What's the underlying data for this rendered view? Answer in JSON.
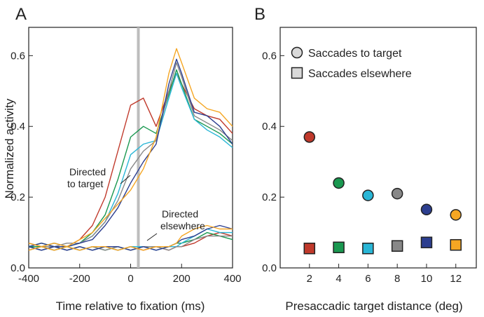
{
  "chart_data": [
    {
      "panel": "A",
      "type": "line",
      "xlabel": "Time relative to fixation (ms)",
      "ylabel": "Normalized activity",
      "xlim": [
        -400,
        400
      ],
      "ylim": [
        0,
        0.68
      ],
      "xticks": [
        -400,
        -200,
        0,
        200,
        400
      ],
      "yticks": [
        0.0,
        0.2,
        0.4,
        0.6
      ],
      "ytick_labels": [
        "0.0",
        "0.2",
        "0.4",
        "0.6"
      ],
      "vertical_marker_x": 0,
      "annotations": [
        {
          "lines": [
            "Directed",
            "to target"
          ]
        },
        {
          "lines": [
            "Directed",
            "elsewhere"
          ]
        }
      ],
      "x": [
        -400,
        -350,
        -300,
        -250,
        -200,
        -150,
        -100,
        -50,
        0,
        50,
        100,
        150,
        180,
        200,
        250,
        300,
        350,
        400
      ],
      "series": [
        {
          "group": "target",
          "color": "#c0392b",
          "values": [
            0.07,
            0.06,
            0.07,
            0.06,
            0.08,
            0.12,
            0.2,
            0.33,
            0.46,
            0.48,
            0.4,
            0.5,
            0.55,
            0.52,
            0.45,
            0.43,
            0.42,
            0.38
          ]
        },
        {
          "group": "target",
          "color": "#1a9850",
          "values": [
            0.06,
            0.07,
            0.06,
            0.06,
            0.07,
            0.1,
            0.15,
            0.25,
            0.37,
            0.4,
            0.38,
            0.49,
            0.56,
            0.52,
            0.42,
            0.4,
            0.38,
            0.35
          ]
        },
        {
          "group": "target",
          "color": "#29b6d6",
          "values": [
            0.06,
            0.06,
            0.07,
            0.06,
            0.07,
            0.09,
            0.13,
            0.21,
            0.32,
            0.35,
            0.36,
            0.48,
            0.55,
            0.51,
            0.42,
            0.39,
            0.37,
            0.34
          ]
        },
        {
          "group": "target",
          "color": "#888888",
          "values": [
            0.07,
            0.06,
            0.06,
            0.07,
            0.07,
            0.09,
            0.13,
            0.19,
            0.28,
            0.33,
            0.36,
            0.5,
            0.58,
            0.54,
            0.43,
            0.41,
            0.39,
            0.36
          ]
        },
        {
          "group": "target",
          "color": "#2c3e8f",
          "values": [
            0.06,
            0.07,
            0.06,
            0.06,
            0.07,
            0.08,
            0.12,
            0.17,
            0.24,
            0.3,
            0.35,
            0.52,
            0.59,
            0.55,
            0.44,
            0.43,
            0.4,
            0.35
          ]
        },
        {
          "group": "target",
          "color": "#f5a623",
          "values": [
            0.07,
            0.06,
            0.07,
            0.06,
            0.08,
            0.1,
            0.14,
            0.18,
            0.22,
            0.28,
            0.37,
            0.55,
            0.62,
            0.58,
            0.48,
            0.45,
            0.44,
            0.4
          ]
        },
        {
          "group": "elsewhere",
          "color": "#c0392b",
          "values": [
            0.06,
            0.05,
            0.06,
            0.05,
            0.06,
            0.05,
            0.06,
            0.05,
            0.06,
            0.05,
            0.06,
            0.05,
            0.06,
            0.06,
            0.07,
            0.09,
            0.1,
            0.09
          ]
        },
        {
          "group": "elsewhere",
          "color": "#1a9850",
          "values": [
            0.06,
            0.06,
            0.05,
            0.06,
            0.05,
            0.06,
            0.05,
            0.06,
            0.05,
            0.06,
            0.06,
            0.06,
            0.07,
            0.07,
            0.08,
            0.1,
            0.09,
            0.08
          ]
        },
        {
          "group": "elsewhere",
          "color": "#29b6d6",
          "values": [
            0.06,
            0.05,
            0.06,
            0.05,
            0.06,
            0.05,
            0.06,
            0.05,
            0.06,
            0.06,
            0.05,
            0.06,
            0.06,
            0.07,
            0.09,
            0.11,
            0.1,
            0.1
          ]
        },
        {
          "group": "elsewhere",
          "color": "#888888",
          "values": [
            0.05,
            0.06,
            0.05,
            0.06,
            0.05,
            0.06,
            0.05,
            0.06,
            0.05,
            0.06,
            0.06,
            0.05,
            0.06,
            0.06,
            0.08,
            0.09,
            0.09,
            0.09
          ]
        },
        {
          "group": "elsewhere",
          "color": "#2c3e8f",
          "values": [
            0.06,
            0.05,
            0.06,
            0.05,
            0.06,
            0.05,
            0.06,
            0.06,
            0.05,
            0.06,
            0.05,
            0.06,
            0.07,
            0.08,
            0.09,
            0.11,
            0.12,
            0.11
          ]
        },
        {
          "group": "elsewhere",
          "color": "#f5a623",
          "values": [
            0.05,
            0.06,
            0.05,
            0.06,
            0.05,
            0.06,
            0.06,
            0.05,
            0.06,
            0.05,
            0.06,
            0.06,
            0.07,
            0.09,
            0.11,
            0.12,
            0.11,
            0.11
          ]
        }
      ]
    },
    {
      "panel": "B",
      "type": "scatter",
      "xlabel": "Presaccadic target distance (deg)",
      "ylabel": "",
      "xlim": [
        0,
        13.4
      ],
      "ylim": [
        0,
        0.68
      ],
      "xticks": [
        2,
        4,
        6,
        8,
        10,
        12
      ],
      "yticks": [
        0.0,
        0.2,
        0.4,
        0.6
      ],
      "ytick_labels": [
        "0.0",
        "0.2",
        "0.4",
        "0.6"
      ],
      "legend": [
        {
          "label": "Saccades to target",
          "marker": "circle"
        },
        {
          "label": "Saccades elsewhere",
          "marker": "square"
        }
      ],
      "colors": [
        "#c0392b",
        "#1a9850",
        "#29b6d6",
        "#888888",
        "#2c3e8f",
        "#f5a623"
      ],
      "series": [
        {
          "marker": "circle",
          "x": [
            2,
            4,
            6,
            8,
            10,
            12
          ],
          "values": [
            0.37,
            0.24,
            0.205,
            0.21,
            0.165,
            0.15
          ]
        },
        {
          "marker": "square",
          "x": [
            2,
            4,
            6,
            8,
            10,
            12
          ],
          "values": [
            0.055,
            0.058,
            0.055,
            0.062,
            0.072,
            0.065
          ]
        }
      ]
    }
  ],
  "labels": {
    "panel_a": "A",
    "panel_b": "B"
  }
}
